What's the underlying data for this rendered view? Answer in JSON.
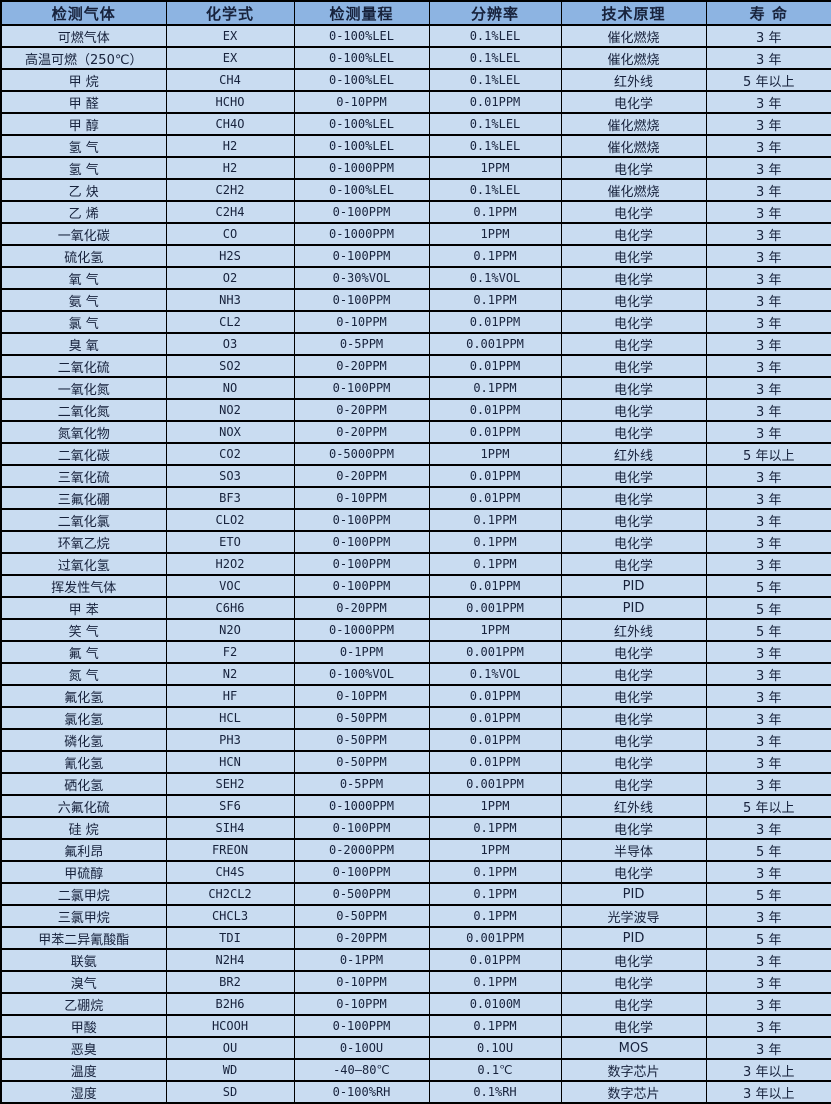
{
  "table": {
    "headers": [
      "检测气体",
      "化学式",
      "检测量程",
      "分辨率",
      "技术原理",
      "寿 命"
    ],
    "column_keys": [
      "gas-name",
      "chemical-formula",
      "detection-range",
      "resolution",
      "technology-principle",
      "lifespan"
    ],
    "rows": [
      [
        "可燃气体",
        "EX",
        "0-100%LEL",
        "0.1%LEL",
        "催化燃烧",
        "3 年"
      ],
      [
        "高温可燃（250℃）",
        "EX",
        "0-100%LEL",
        "0.1%LEL",
        "催化燃烧",
        "3 年"
      ],
      [
        "甲 烷",
        "CH4",
        "0-100%LEL",
        "0.1%LEL",
        "红外线",
        "5 年以上"
      ],
      [
        "甲 醛",
        "HCHO",
        "0-10PPM",
        "0.01PPM",
        "电化学",
        "3 年"
      ],
      [
        "甲 醇",
        "CH4O",
        "0-100%LEL",
        "0.1%LEL",
        "催化燃烧",
        "3 年"
      ],
      [
        "氢 气",
        "H2",
        "0-100%LEL",
        "0.1%LEL",
        "催化燃烧",
        "3 年"
      ],
      [
        "氢 气",
        "H2",
        "0-1000PPM",
        "1PPM",
        "电化学",
        "3 年"
      ],
      [
        "乙 炔",
        "C2H2",
        "0-100%LEL",
        "0.1%LEL",
        "催化燃烧",
        "3 年"
      ],
      [
        "乙 烯",
        "C2H4",
        "0-100PPM",
        "0.1PPM",
        "电化学",
        "3 年"
      ],
      [
        "一氧化碳",
        "CO",
        "0-1000PPM",
        "1PPM",
        "电化学",
        "3 年"
      ],
      [
        "硫化氢",
        "H2S",
        "0-100PPM",
        "0.1PPM",
        "电化学",
        "3 年"
      ],
      [
        "氧 气",
        "O2",
        "0-30%VOL",
        "0.1%VOL",
        "电化学",
        "3 年"
      ],
      [
        "氨 气",
        "NH3",
        "0-100PPM",
        "0.1PPM",
        "电化学",
        "3 年"
      ],
      [
        "氯 气",
        "CL2",
        "0-10PPM",
        "0.01PPM",
        "电化学",
        "3 年"
      ],
      [
        "臭 氧",
        "O3",
        "0-5PPM",
        "0.001PPM",
        "电化学",
        "3 年"
      ],
      [
        "二氧化硫",
        "SO2",
        "0-20PPM",
        "0.01PPM",
        "电化学",
        "3 年"
      ],
      [
        "一氧化氮",
        "NO",
        "0-100PPM",
        "0.1PPM",
        "电化学",
        "3 年"
      ],
      [
        "二氧化氮",
        "NO2",
        "0-20PPM",
        "0.01PPM",
        "电化学",
        "3 年"
      ],
      [
        "氮氧化物",
        "NOX",
        "0-20PPM",
        "0.01PPM",
        "电化学",
        "3 年"
      ],
      [
        "二氧化碳",
        "CO2",
        "0-5000PPM",
        "1PPM",
        "红外线",
        "5 年以上"
      ],
      [
        "三氧化硫",
        "SO3",
        "0-20PPM",
        "0.01PPM",
        "电化学",
        "3 年"
      ],
      [
        "三氟化硼",
        "BF3",
        "0-10PPM",
        "0.01PPM",
        "电化学",
        "3 年"
      ],
      [
        "二氧化氯",
        "CLO2",
        "0-100PPM",
        "0.1PPM",
        "电化学",
        "3 年"
      ],
      [
        "环氧乙烷",
        "ETO",
        "0-100PPM",
        "0.1PPM",
        "电化学",
        "3 年"
      ],
      [
        "过氧化氢",
        "H2O2",
        "0-100PPM",
        "0.1PPM",
        "电化学",
        "3 年"
      ],
      [
        "挥发性气体",
        "VOC",
        "0-100PPM",
        "0.01PPM",
        "PID",
        "5 年"
      ],
      [
        "甲 苯",
        "C6H6",
        "0-20PPM",
        "0.001PPM",
        "PID",
        "5 年"
      ],
      [
        "笑 气",
        "N2O",
        "0-1000PPM",
        "1PPM",
        "红外线",
        "5 年"
      ],
      [
        "氟 气",
        "F2",
        "0-1PPM",
        "0.001PPM",
        "电化学",
        "3 年"
      ],
      [
        "氮 气",
        "N2",
        "0-100%VOL",
        "0.1%VOL",
        "电化学",
        "3 年"
      ],
      [
        "氟化氢",
        "HF",
        "0-10PPM",
        "0.01PPM",
        "电化学",
        "3 年"
      ],
      [
        "氯化氢",
        "HCL",
        "0-50PPM",
        "0.01PPM",
        "电化学",
        "3 年"
      ],
      [
        "磷化氢",
        "PH3",
        "0-50PPM",
        "0.01PPM",
        "电化学",
        "3 年"
      ],
      [
        "氰化氢",
        "HCN",
        "0-50PPM",
        "0.01PPM",
        "电化学",
        "3 年"
      ],
      [
        "硒化氢",
        "SEH2",
        "0-5PPM",
        "0.001PPM",
        "电化学",
        "3 年"
      ],
      [
        "六氟化硫",
        "SF6",
        "0-1000PPM",
        "1PPM",
        "红外线",
        "5 年以上"
      ],
      [
        "硅 烷",
        "SIH4",
        "0-100PPM",
        "0.1PPM",
        "电化学",
        "3 年"
      ],
      [
        "氟利昂",
        "FREON",
        "0-2000PPM",
        "1PPM",
        "半导体",
        "5 年"
      ],
      [
        "甲硫醇",
        "CH4S",
        "0-100PPM",
        "0.1PPM",
        "电化学",
        "3 年"
      ],
      [
        "二氯甲烷",
        "CH2CL2",
        "0-500PPM",
        "0.1PPM",
        "PID",
        "5 年"
      ],
      [
        "三氯甲烷",
        "CHCL3",
        "0-50PPM",
        "0.1PPM",
        "光学波导",
        "3 年"
      ],
      [
        "甲苯二异氰酸酯",
        "TDI",
        "0-20PPM",
        "0.001PPM",
        "PID",
        "5 年"
      ],
      [
        "联氨",
        "N2H4",
        "0-1PPM",
        "0.01PPM",
        "电化学",
        "3 年"
      ],
      [
        "溴气",
        "BR2",
        "0-10PPM",
        "0.1PPM",
        "电化学",
        "3 年"
      ],
      [
        "乙硼烷",
        "B2H6",
        "0-10PPM",
        "0.0100M",
        "电化学",
        "3 年"
      ],
      [
        "甲酸",
        "HCOOH",
        "0-100PPM",
        "0.1PPM",
        "电化学",
        "3 年"
      ],
      [
        "恶臭",
        "OU",
        "0-10OU",
        "0.1OU",
        "MOS",
        "3 年"
      ],
      [
        "温度",
        "WD",
        "-40—80℃",
        "0.1℃",
        "数字芯片",
        "3 年以上"
      ],
      [
        "湿度",
        "SD",
        "0-100%RH",
        "0.1%RH",
        "数字芯片",
        "3 年以上"
      ]
    ]
  },
  "colors": {
    "header_bg": "#8DB4E2",
    "row_bg": "#C9DCF1",
    "border": "#000000",
    "text": "#17223C"
  }
}
